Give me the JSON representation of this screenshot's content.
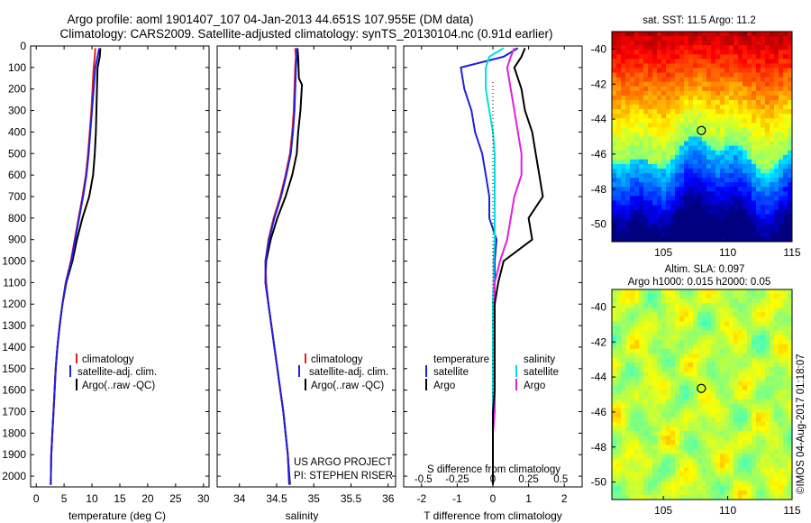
{
  "header": {
    "line1": "Argo profile: aoml 1901407_107 04-Jan-2013 44.651S 107.955E (DM data)",
    "line2": "Climatology: CARS2009. Satellite-adjusted climatology: synTS_20130104.nc (0.91d earlier)"
  },
  "colors": {
    "climatology": "#e02020",
    "satellite": "#2020e0",
    "argo": "#000000",
    "sal_satellite": "#00e0e0",
    "sal_argo": "#e020e0"
  },
  "chart_data": [
    {
      "type": "line",
      "panel": "temperature",
      "xlabel": "temperature (deg C)",
      "ylabel": "",
      "xlim": [
        -1,
        31
      ],
      "ylim": [
        2050,
        0
      ],
      "xticks": [
        "0",
        "5",
        "10",
        "15",
        "20",
        "25",
        "30"
      ],
      "yticks": [
        "0",
        "100",
        "200",
        "300",
        "400",
        "500",
        "600",
        "700",
        "800",
        "900",
        "1000",
        "1100",
        "1200",
        "1300",
        "1400",
        "1500",
        "1600",
        "1700",
        "1800",
        "1900",
        "2000"
      ],
      "legend": [
        "climatology",
        "satellite-adj. clim.",
        "Argo(..raw -QC)"
      ],
      "series": [
        {
          "name": "climatology",
          "color": "#e02020",
          "x": [
            10.6,
            10.5,
            10.3,
            10.1,
            9.9,
            9.6,
            9.3,
            8.9,
            8.3,
            7.6,
            6.9,
            6.2,
            5.3,
            4.7,
            4.2,
            3.8,
            3.5,
            3.3,
            3.1,
            2.9,
            2.7,
            2.6
          ],
          "y": [
            10,
            50,
            100,
            200,
            300,
            400,
            500,
            600,
            700,
            800,
            900,
            1000,
            1100,
            1200,
            1300,
            1400,
            1500,
            1600,
            1700,
            1800,
            1900,
            2040
          ]
        },
        {
          "name": "satellite-adj. clim.",
          "color": "#2020e0",
          "x": [
            11.3,
            11.0,
            10.6,
            10.3,
            10.0,
            9.7,
            9.4,
            9.0,
            8.4,
            7.7,
            7.0,
            6.3,
            5.3,
            4.7,
            4.2,
            3.8,
            3.5,
            3.3,
            3.1,
            2.9,
            2.7,
            2.6
          ],
          "y": [
            10,
            50,
            100,
            200,
            300,
            400,
            500,
            600,
            700,
            800,
            900,
            1000,
            1100,
            1200,
            1300,
            1400,
            1500,
            1600,
            1700,
            1800,
            1900,
            2040
          ]
        },
        {
          "name": "Argo(..raw -QC)",
          "color": "#000000",
          "x": [
            11.5,
            11.4,
            11.0,
            10.9,
            10.8,
            10.7,
            10.5,
            10.2,
            9.5,
            8.3,
            7.3,
            6.5,
            5.4,
            4.7,
            4.2,
            3.8,
            3.5,
            3.3,
            3.1,
            2.9,
            2.7,
            2.6
          ],
          "y": [
            10,
            50,
            100,
            200,
            300,
            400,
            500,
            600,
            700,
            800,
            900,
            1000,
            1100,
            1200,
            1300,
            1400,
            1500,
            1600,
            1700,
            1800,
            1900,
            2040
          ]
        }
      ]
    },
    {
      "type": "line",
      "panel": "salinity",
      "xlabel": "salinity",
      "ylabel": "",
      "xlim": [
        33.7,
        36.1
      ],
      "ylim": [
        2050,
        0
      ],
      "xticks": [
        "34",
        "34.5",
        "35",
        "35.5",
        "36"
      ],
      "legend": [
        "climatology",
        "satellite-adj. clim.",
        "Argo(..raw -QC)"
      ],
      "annotation": [
        "US ARGO PROJECT",
        "PI: STEPHEN RISER"
      ],
      "series": [
        {
          "name": "climatology",
          "color": "#e02020",
          "x": [
            34.75,
            34.76,
            34.75,
            34.74,
            34.73,
            34.71,
            34.68,
            34.62,
            34.55,
            34.46,
            34.39,
            34.35,
            34.36,
            34.39,
            34.43,
            34.47,
            34.51,
            34.55,
            34.59,
            34.62,
            34.65,
            34.67
          ],
          "y": [
            10,
            50,
            100,
            200,
            300,
            400,
            500,
            600,
            700,
            800,
            900,
            1000,
            1100,
            1200,
            1300,
            1400,
            1500,
            1600,
            1700,
            1800,
            1900,
            2040
          ]
        },
        {
          "name": "satellite-adj. clim.",
          "color": "#2020e0",
          "x": [
            34.77,
            34.77,
            34.76,
            34.75,
            34.74,
            34.72,
            34.69,
            34.63,
            34.56,
            34.47,
            34.4,
            34.35,
            34.35,
            34.39,
            34.43,
            34.47,
            34.51,
            34.55,
            34.59,
            34.62,
            34.65,
            34.67
          ],
          "y": [
            10,
            50,
            100,
            200,
            300,
            400,
            500,
            600,
            700,
            800,
            900,
            1000,
            1100,
            1200,
            1300,
            1400,
            1500,
            1600,
            1700,
            1800,
            1900,
            2040
          ]
        },
        {
          "name": "Argo(..raw -QC)",
          "color": "#000000",
          "x": [
            34.78,
            34.79,
            34.8,
            34.84,
            34.82,
            34.79,
            34.77,
            34.71,
            34.62,
            34.51,
            34.42,
            34.36,
            34.35,
            34.39,
            34.43,
            34.47,
            34.51,
            34.55,
            34.59,
            34.62,
            34.65,
            34.68
          ],
          "y": [
            10,
            50,
            150,
            180,
            300,
            400,
            500,
            600,
            700,
            800,
            900,
            1000,
            1100,
            1200,
            1300,
            1400,
            1500,
            1600,
            1700,
            1800,
            1900,
            2040
          ]
        }
      ]
    },
    {
      "type": "line",
      "panel": "difference",
      "xlabel": "T difference from climatology",
      "xlabel_top": "S difference from climatology",
      "xlim": [
        -2.5,
        2.5
      ],
      "ylim": [
        2050,
        0
      ],
      "xticks": [
        "-2",
        "-1",
        "0",
        "1",
        "2"
      ],
      "sticks": [
        "-0.5",
        "-0.25",
        "0",
        "0.25",
        "0.5"
      ],
      "legend_temp_title": "temperature",
      "legend_sal_title": "salinity",
      "legend_temp": [
        "satellite",
        "Argo"
      ],
      "legend_sal": [
        "satellite",
        "Argo"
      ],
      "series": [
        {
          "name": "temperature satellite",
          "color": "#2020e0",
          "x": [
            0.7,
            0.3,
            -0.9,
            -0.8,
            -0.6,
            -0.5,
            -0.3,
            -0.2,
            -0.1,
            -0.1,
            0.1,
            0.05,
            0.05,
            0,
            0,
            0,
            0,
            0,
            0,
            0,
            0,
            0
          ],
          "y": [
            10,
            50,
            100,
            200,
            300,
            400,
            500,
            600,
            700,
            800,
            900,
            1000,
            1100,
            1200,
            1300,
            1400,
            1500,
            1600,
            1700,
            1800,
            1900,
            2040
          ]
        },
        {
          "name": "temperature Argo",
          "color": "#000000",
          "x": [
            0.9,
            0.8,
            0.6,
            0.8,
            0.9,
            1.1,
            1.2,
            1.3,
            1.4,
            1.0,
            1.1,
            0.3,
            0.15,
            0.05,
            0.05,
            0.05,
            0.05,
            0.05,
            0,
            0,
            0,
            0
          ],
          "y": [
            10,
            50,
            100,
            200,
            300,
            400,
            500,
            600,
            700,
            800,
            900,
            1000,
            1100,
            1200,
            1300,
            1400,
            1500,
            1600,
            1700,
            1800,
            1900,
            2040
          ]
        },
        {
          "name": "salinity satellite",
          "color": "#00e0e0",
          "x": [
            0.3,
            -0.1,
            -0.2,
            -0.2,
            -0.1,
            0,
            0.05,
            0.05,
            0.05,
            0.05,
            0.05,
            0.02,
            0.02,
            0,
            0,
            0,
            0,
            0,
            0,
            0,
            0,
            0
          ],
          "y": [
            10,
            50,
            100,
            200,
            300,
            400,
            500,
            600,
            700,
            800,
            900,
            1000,
            1100,
            1200,
            1300,
            1400,
            1500,
            1600,
            1700,
            1800,
            1900,
            2040
          ]
        },
        {
          "name": "salinity Argo",
          "color": "#e020e0",
          "x": [
            0.6,
            0.5,
            0.4,
            0.5,
            0.6,
            0.7,
            0.8,
            0.8,
            0.6,
            0.5,
            0.4,
            0.2,
            0.05,
            0.05,
            0.05,
            0.05,
            0.05,
            0.05,
            0.05,
            0,
            0,
            0
          ],
          "y": [
            10,
            50,
            100,
            200,
            300,
            400,
            500,
            600,
            700,
            800,
            900,
            1000,
            1100,
            1200,
            1300,
            1400,
            1500,
            1600,
            1700,
            1800,
            1900,
            2040
          ]
        }
      ]
    },
    {
      "type": "heatmap",
      "panel": "sst-map",
      "title": "sat. SST: 11.5  Argo: 11.2",
      "xlim": [
        101,
        115
      ],
      "ylim": [
        -51,
        -39
      ],
      "xticks": [
        "105",
        "110",
        "115"
      ],
      "yticks": [
        "-40",
        "-42",
        "-44",
        "-46",
        "-48",
        "-50"
      ],
      "marker": {
        "lon": 107.955,
        "lat": -44.651
      }
    },
    {
      "type": "heatmap",
      "panel": "sla-map",
      "title": [
        "Altim. SLA: 0.097",
        "Argo h1000: 0.015 h2000: 0.05"
      ],
      "xlim": [
        101,
        115
      ],
      "ylim": [
        -51,
        -39
      ],
      "xticks": [
        "105",
        "110",
        "115"
      ],
      "yticks": [
        "-40",
        "-42",
        "-44",
        "-46",
        "-48",
        "-50"
      ],
      "marker": {
        "lon": 107.955,
        "lat": -44.651
      }
    }
  ],
  "credit": "©IMOS 04-Aug-2017 01:18:07"
}
